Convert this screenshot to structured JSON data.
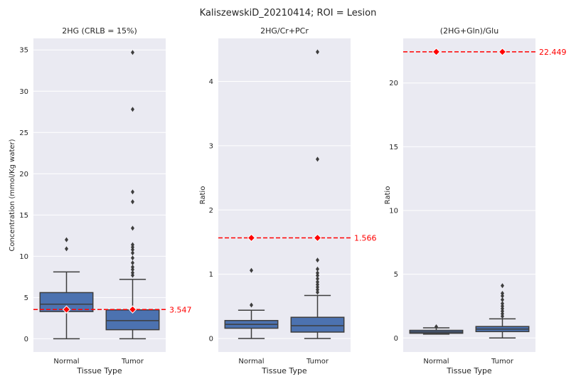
{
  "figure": {
    "suptitle": "KaliszewskiD_20210414; ROI = Lesion"
  },
  "colors": {
    "panel_bg": "#eaeaf2",
    "grid": "#ffffff",
    "box_fill": "#4c72b0",
    "box_edge": "#3d3d3d",
    "reference": "#ff0000",
    "text": "#262626"
  },
  "chart_data": [
    {
      "type": "box",
      "title": "2HG (CRLB = 15%)",
      "xlabel": "Tissue Type",
      "ylabel": "Concentration (mmol/Kg water)",
      "categories": [
        "Normal",
        "Tumor"
      ],
      "ylim": [
        -1.6,
        36.4
      ],
      "yticks": [
        0,
        5,
        10,
        15,
        20,
        25,
        30,
        35
      ],
      "grid": true,
      "boxes": [
        {
          "category": "Normal",
          "whisker_low": 0.0,
          "q1": 3.3,
          "median": 4.2,
          "q3": 5.6,
          "whisker_high": 8.1,
          "outliers": [
            10.9,
            12.0
          ]
        },
        {
          "category": "Tumor",
          "whisker_low": 0.0,
          "q1": 1.1,
          "median": 2.2,
          "q3": 3.5,
          "whisker_high": 7.2,
          "outliers": [
            7.7,
            8.0,
            8.4,
            8.7,
            9.2,
            9.8,
            10.4,
            10.8,
            11.1,
            11.4,
            13.4,
            16.6,
            17.8,
            27.8,
            34.7
          ]
        }
      ],
      "reference": {
        "value": 3.547,
        "label": "3.547"
      }
    },
    {
      "type": "box",
      "title": "2HG/Cr+PCr",
      "xlabel": "Tissue Type",
      "ylabel": "Ratio",
      "categories": [
        "Normal",
        "Tumor"
      ],
      "ylim": [
        -0.21,
        4.67
      ],
      "yticks": [
        0,
        1,
        2,
        3,
        4
      ],
      "grid": true,
      "boxes": [
        {
          "category": "Normal",
          "whisker_low": 0.0,
          "q1": 0.16,
          "median": 0.22,
          "q3": 0.28,
          "whisker_high": 0.44,
          "outliers": [
            0.52,
            1.06
          ]
        },
        {
          "category": "Tumor",
          "whisker_low": 0.0,
          "q1": 0.1,
          "median": 0.2,
          "q3": 0.33,
          "whisker_high": 0.67,
          "outliers": [
            0.72,
            0.76,
            0.8,
            0.84,
            0.88,
            0.93,
            0.98,
            1.02,
            1.08,
            1.22,
            2.79,
            4.46
          ]
        }
      ],
      "reference": {
        "value": 1.566,
        "label": "1.566"
      }
    },
    {
      "type": "box",
      "title": "(2HG+Gln)/Glu",
      "xlabel": "Tissue Type",
      "ylabel": "Ratio",
      "categories": [
        "Normal",
        "Tumor"
      ],
      "ylim": [
        -1.1,
        23.5
      ],
      "yticks": [
        0,
        5,
        10,
        15,
        20
      ],
      "grid": true,
      "boxes": [
        {
          "category": "Normal",
          "whisker_low": 0.3,
          "q1": 0.37,
          "median": 0.47,
          "q3": 0.6,
          "whisker_high": 0.8,
          "outliers": [
            0.88
          ]
        },
        {
          "category": "Tumor",
          "whisker_low": 0.0,
          "q1": 0.5,
          "median": 0.7,
          "q3": 0.9,
          "whisker_high": 1.5,
          "outliers": [
            1.7,
            1.9,
            2.1,
            2.3,
            2.5,
            2.7,
            3.0,
            3.3,
            3.5,
            4.1
          ]
        }
      ],
      "reference": {
        "value": 22.449,
        "label": "22.449"
      }
    }
  ]
}
